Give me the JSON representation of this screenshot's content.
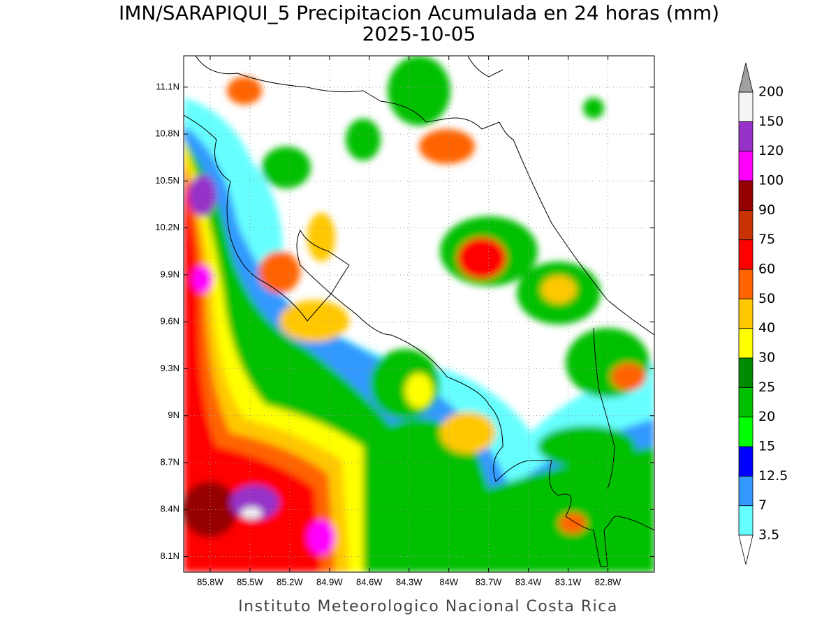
{
  "title": "IMN/SARAPIQUI_5 Precipitacion Acumulada en 24 horas (mm)",
  "subtitle": "2025-10-05",
  "footer": "Instituto Meteorologico Nacional Costa Rica",
  "map": {
    "xlim": [
      -86.0,
      -82.45
    ],
    "ylim": [
      8.0,
      11.3
    ],
    "grid": true,
    "xticks": [
      {
        "value": -85.8,
        "label": "85.8W"
      },
      {
        "value": -85.5,
        "label": "85.5W"
      },
      {
        "value": -85.2,
        "label": "85.2W"
      },
      {
        "value": -84.9,
        "label": "84.9W"
      },
      {
        "value": -84.6,
        "label": "84.6W"
      },
      {
        "value": -84.3,
        "label": "84.3W"
      },
      {
        "value": -84,
        "label": "84W"
      },
      {
        "value": -83.7,
        "label": "83.7W"
      },
      {
        "value": -83.4,
        "label": "83.4W"
      },
      {
        "value": -83.1,
        "label": "83.1W"
      },
      {
        "value": -82.8,
        "label": "82.8W"
      }
    ],
    "yticks": [
      {
        "value": 11.1,
        "label": "11.1N"
      },
      {
        "value": 10.8,
        "label": "10.8N"
      },
      {
        "value": 10.5,
        "label": "10.5N"
      },
      {
        "value": 10.2,
        "label": "10.2N"
      },
      {
        "value": 9.9,
        "label": "9.9N"
      },
      {
        "value": 9.6,
        "label": "9.6N"
      },
      {
        "value": 9.3,
        "label": "9.3N"
      },
      {
        "value": 9,
        "label": "9N"
      },
      {
        "value": 8.7,
        "label": "8.7N"
      },
      {
        "value": 8.4,
        "label": "8.4N"
      },
      {
        "value": 8.1,
        "label": "8.1N"
      }
    ]
  },
  "colorbar": {
    "levels": [
      3.5,
      7,
      12.5,
      15,
      20,
      25,
      30,
      40,
      50,
      60,
      75,
      90,
      100,
      120,
      150,
      200
    ],
    "colors": [
      "#66ffff",
      "#3399ff",
      "#0000ff",
      "#00ff00",
      "#00c000",
      "#008c00",
      "#ffff00",
      "#ffc800",
      "#ff6400",
      "#ff0000",
      "#c83200",
      "#960000",
      "#ff00ff",
      "#9632c8",
      "#f5f5f5"
    ],
    "over_color": "#a0a0a0",
    "under_color": "#ffffff"
  }
}
